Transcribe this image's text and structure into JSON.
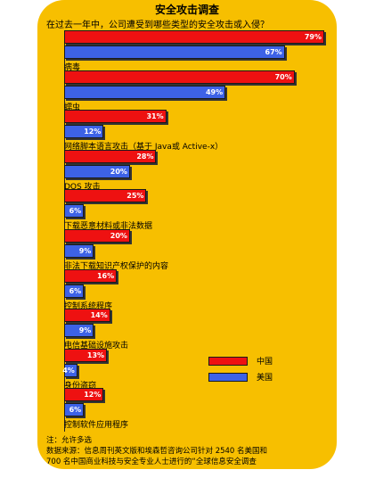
{
  "chart_data": {
    "type": "bar",
    "title": "安全攻击调查",
    "subtitle": "在过去一年中，公司遭受到哪些类型的安全攻击或入侵？",
    "categories": [
      "病毒",
      "蠕虫",
      "网络脚本语言攻击（基于 Java或 Active-x）",
      "DOS 攻击",
      "下载恶意材料或非法数据",
      "非法下载知识产权保护的内容",
      "控制系统程序",
      "电信基础设施攻击",
      "身份盗窃",
      "控制软件应用程序"
    ],
    "series": [
      {
        "name": "中国",
        "values": [
          79,
          70,
          31,
          28,
          25,
          20,
          16,
          14,
          13,
          12
        ],
        "labels": [
          "79%",
          "70%",
          "31%",
          "28%",
          "25%",
          "20%",
          "16%",
          "14%",
          "13%",
          "12%"
        ],
        "color": "#ee1111"
      },
      {
        "name": "美国",
        "values": [
          67,
          49,
          12,
          20,
          6,
          9,
          6,
          9,
          4,
          6
        ],
        "labels": [
          "67%",
          "49%",
          "12%",
          "20%",
          "6%",
          "9%",
          "6%",
          "9%",
          "4%",
          "6%"
        ],
        "color": "#3d62e6"
      }
    ],
    "xlim": [
      0,
      79
    ],
    "legend_position": "right"
  },
  "notes": {
    "line1": "注：允许多选",
    "line2": "数据来源：信息周刊英文版和埃森哲咨询公司针对 2540 名美国和",
    "line3": "700 名中国商业科技与安全专业人士进行的“全球信息安全调查"
  }
}
